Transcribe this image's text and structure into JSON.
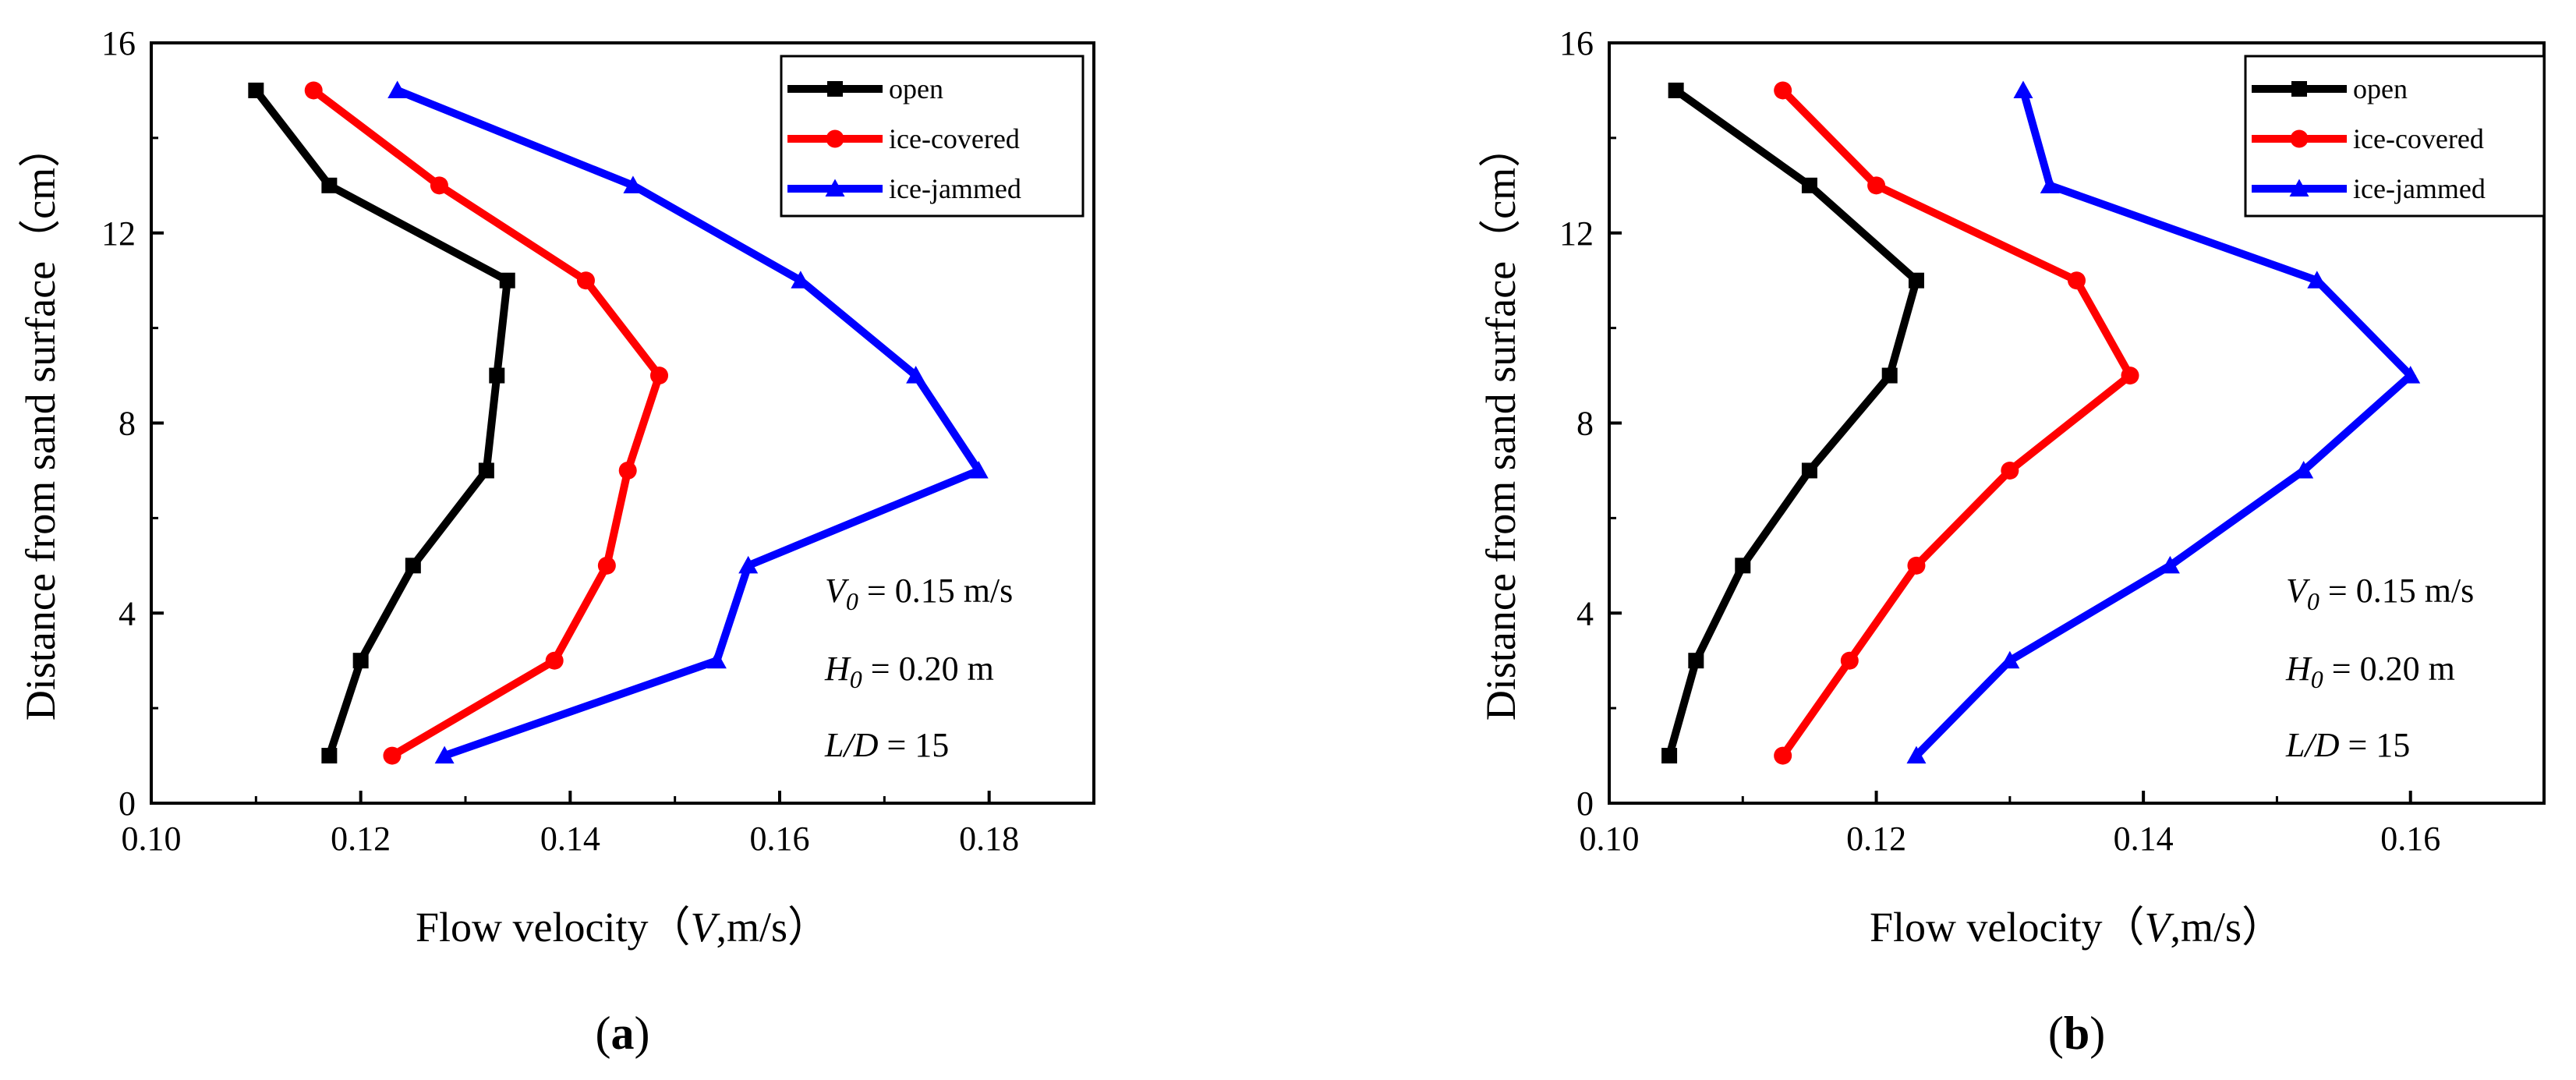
{
  "figure": {
    "panels": [
      {
        "panel_label": "a",
        "panel_label_open": "(",
        "panel_label_close": ")",
        "annotation": {
          "v0": {
            "sym": "V",
            "sub": "0",
            "rest": " = 0.15 m/s"
          },
          "h0": {
            "sym": "H",
            "sub": "0",
            "rest": " = 0.20 m"
          },
          "ld": {
            "sym": "L/D",
            "rest": " = 15"
          }
        }
      },
      {
        "panel_label": "b",
        "panel_label_open": "(",
        "panel_label_close": ")",
        "annotation": {
          "v0": {
            "sym": "V",
            "sub": "0",
            "rest": " = 0.15 m/s"
          },
          "h0": {
            "sym": "H",
            "sub": "0",
            "rest": " = 0.20 m"
          },
          "ld": {
            "sym": "L/D",
            "rest": " = 15"
          }
        }
      }
    ]
  },
  "chart_data": [
    {
      "type": "line",
      "panel": "a",
      "xlabel_prefix": "Flow velocity（",
      "xlabel_var": "V",
      "xlabel_suffix": ",m/s）",
      "ylabel": "Distance from sand surface（cm）",
      "xlim": [
        0.1,
        0.19
      ],
      "ylim": [
        0,
        16
      ],
      "xticks": [
        "0.10",
        "0.12",
        "0.14",
        "0.16",
        "0.18"
      ],
      "yticks": [
        "0",
        "4",
        "8",
        "12",
        "16"
      ],
      "legend_position": "top-right",
      "series": [
        {
          "name": "open",
          "color": "#000000",
          "marker": "square",
          "x": [
            0.117,
            0.12,
            0.125,
            0.132,
            0.133,
            0.134,
            0.117,
            0.11
          ],
          "y": [
            1,
            3,
            5,
            7,
            9,
            11,
            13,
            15
          ]
        },
        {
          "name": "ice-covered",
          "color": "#ff0000",
          "marker": "circle",
          "x": [
            0.123,
            0.1385,
            0.1435,
            0.1455,
            0.1485,
            0.1415,
            0.1275,
            0.1155
          ],
          "y": [
            1,
            3,
            5,
            7,
            9,
            11,
            13,
            15
          ]
        },
        {
          "name": "ice-jammed",
          "color": "#0000ff",
          "marker": "triangle",
          "x": [
            0.128,
            0.154,
            0.157,
            0.179,
            0.173,
            0.162,
            0.146,
            0.1235
          ],
          "y": [
            1,
            3,
            5,
            7,
            9,
            11,
            13,
            15
          ]
        }
      ]
    },
    {
      "type": "line",
      "panel": "b",
      "xlabel_prefix": "Flow velocity（",
      "xlabel_var": "V",
      "xlabel_suffix": ",m/s）",
      "ylabel": "Distance from sand surface（cm）",
      "xlim": [
        0.1,
        0.17
      ],
      "ylim": [
        0,
        16
      ],
      "xticks": [
        "0.10",
        "0.12",
        "0.14",
        "0.16"
      ],
      "yticks": [
        "0",
        "4",
        "8",
        "12",
        "16"
      ],
      "legend_position": "top-right",
      "series": [
        {
          "name": "open",
          "color": "#000000",
          "marker": "square",
          "x": [
            0.1045,
            0.1065,
            0.11,
            0.115,
            0.121,
            0.123,
            0.115,
            0.105
          ],
          "y": [
            1,
            3,
            5,
            7,
            9,
            11,
            13,
            15
          ]
        },
        {
          "name": "ice-covered",
          "color": "#ff0000",
          "marker": "circle",
          "x": [
            0.113,
            0.118,
            0.123,
            0.13,
            0.139,
            0.135,
            0.12,
            0.113
          ],
          "y": [
            1,
            3,
            5,
            7,
            9,
            11,
            13,
            15
          ]
        },
        {
          "name": "ice-jammed",
          "color": "#0000ff",
          "marker": "triangle",
          "x": [
            0.123,
            0.13,
            0.142,
            0.152,
            0.16,
            0.153,
            0.133,
            0.131
          ],
          "y": [
            1,
            3,
            5,
            7,
            9,
            11,
            13,
            15
          ]
        }
      ]
    }
  ]
}
